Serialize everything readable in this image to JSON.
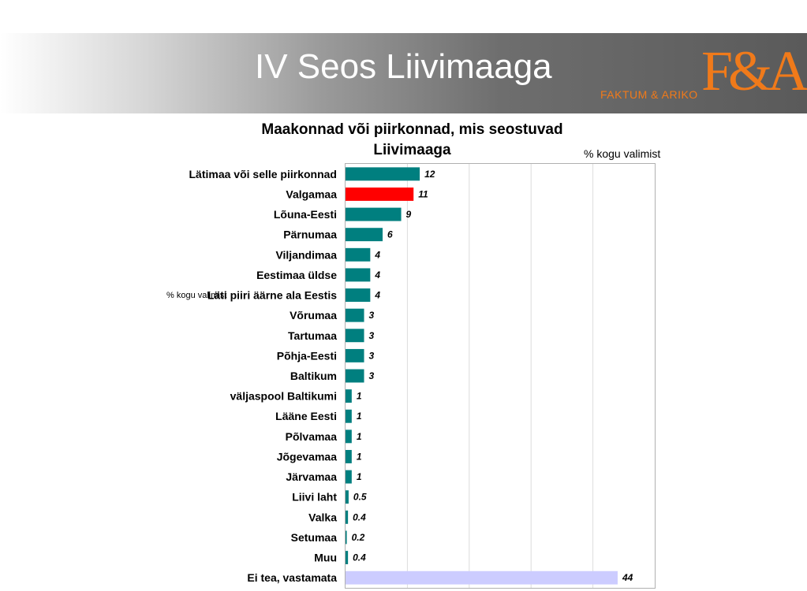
{
  "slide": {
    "title": "IV Seos Liivimaaga",
    "logo_text": "FAKTUM & ARIKO",
    "logo_mark": "F&A"
  },
  "colors": {
    "default_bar": "#007f7f",
    "highlight_bar": "#ff0000",
    "other_bar": "#ccccff",
    "logo": "#f07a1a"
  },
  "chart_data": {
    "type": "bar",
    "orientation": "horizontal",
    "title": "Maakonnad või piirkonnad, mis seostuvad Liivimaaga",
    "unit_label": "% kogu valimist",
    "stray_label": "% kogu valimist",
    "xlim": [
      0,
      50
    ],
    "grid": true,
    "categories": [
      "Lätimaa või selle piirkonnad",
      "Valgamaa",
      "Lõuna-Eesti",
      "Pärnumaa",
      "Viljandimaa",
      "Eestimaa üldse",
      "Läti piiri äärne ala Eestis",
      "Võrumaa",
      "Tartumaa",
      "Põhja-Eesti",
      "Baltikum",
      "väljaspool Baltikumi",
      "Lääne Eesti",
      "Põlvamaa",
      "Jõgevamaa",
      "Järvamaa",
      "Liivi laht",
      "Valka",
      "Setumaa",
      "Muu",
      "Ei tea, vastamata"
    ],
    "values": [
      12,
      11,
      9,
      6,
      4,
      4,
      4,
      3,
      3,
      3,
      3,
      1,
      1,
      1,
      1,
      1,
      0.5,
      0.4,
      0.2,
      0.4,
      44
    ],
    "value_labels": [
      "12",
      "11",
      "9",
      "6",
      "4",
      "4",
      "4",
      "3",
      "3",
      "3",
      "3",
      "1",
      "1",
      "1",
      "1",
      "1",
      "0.5",
      "0.4",
      "0.2",
      "0.4",
      "44"
    ],
    "bar_colors": [
      "#007f7f",
      "#ff0000",
      "#007f7f",
      "#007f7f",
      "#007f7f",
      "#007f7f",
      "#007f7f",
      "#007f7f",
      "#007f7f",
      "#007f7f",
      "#007f7f",
      "#007f7f",
      "#007f7f",
      "#007f7f",
      "#007f7f",
      "#007f7f",
      "#007f7f",
      "#007f7f",
      "#007f7f",
      "#007f7f",
      "#ccccff"
    ]
  }
}
